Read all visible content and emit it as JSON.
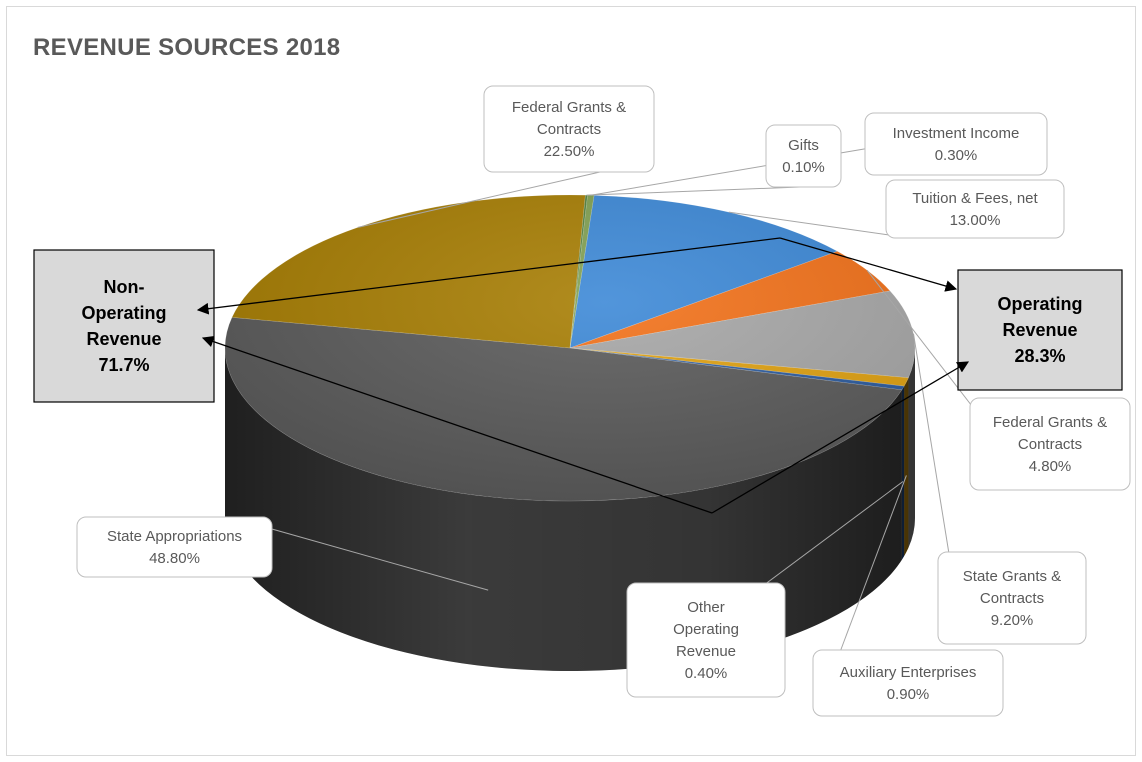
{
  "chart_data": {
    "type": "pie",
    "title": "REVENUE SOURCES 2018",
    "slices": [
      {
        "name": "Tuition & Fees, net",
        "label_lines": [
          "Tuition & Fees, net",
          "13.00%"
        ],
        "value": 13.0,
        "group": "operating",
        "color": "#3a87d6"
      },
      {
        "name": "Federal Grants & Contracts (Operating)",
        "label_lines": [
          "Federal Grants &",
          "Contracts",
          "4.80%"
        ],
        "value": 4.8,
        "group": "operating",
        "color": "#f26f16"
      },
      {
        "name": "State Grants & Contracts",
        "label_lines": [
          "State Grants &",
          "Contracts",
          "9.20%"
        ],
        "value": 9.2,
        "group": "operating",
        "color": "#a6a6a6"
      },
      {
        "name": "Auxiliary Enterprises",
        "label_lines": [
          "Auxiliary Enterprises",
          "0.90%"
        ],
        "value": 0.9,
        "group": "operating",
        "color": "#e0a10f"
      },
      {
        "name": "Other Operating Revenue",
        "label_lines": [
          "Other",
          "Operating",
          "Revenue",
          "0.40%"
        ],
        "value": 0.4,
        "group": "operating",
        "color": "#2a5a9e"
      },
      {
        "name": "State Appropriations",
        "label_lines": [
          "State Appropriations",
          "48.80%"
        ],
        "value": 48.8,
        "group": "non-operating",
        "color": "#595959"
      },
      {
        "name": "Federal Grants & Contracts (Non-Operating)",
        "label_lines": [
          "Federal Grants &",
          "Contracts",
          "22.50%"
        ],
        "value": 22.5,
        "group": "non-operating",
        "color": "#a67c00"
      },
      {
        "name": "Gifts",
        "label_lines": [
          "Gifts",
          "0.10%"
        ],
        "value": 0.1,
        "group": "non-operating",
        "color": "#4f7f3a"
      },
      {
        "name": "Investment Income",
        "label_lines": [
          "Investment Income",
          "0.30%"
        ],
        "value": 0.3,
        "group": "non-operating",
        "color": "#7f9f4f"
      }
    ],
    "groups": [
      {
        "name": "Non-Operating Revenue",
        "label_lines": [
          "Non-",
          "Operating",
          "Revenue",
          "71.7%"
        ],
        "value": 71.7
      },
      {
        "name": "Operating Revenue",
        "label_lines": [
          "Operating",
          "Revenue",
          "28.3%"
        ],
        "value": 28.3
      }
    ],
    "style": "3d-pie"
  }
}
